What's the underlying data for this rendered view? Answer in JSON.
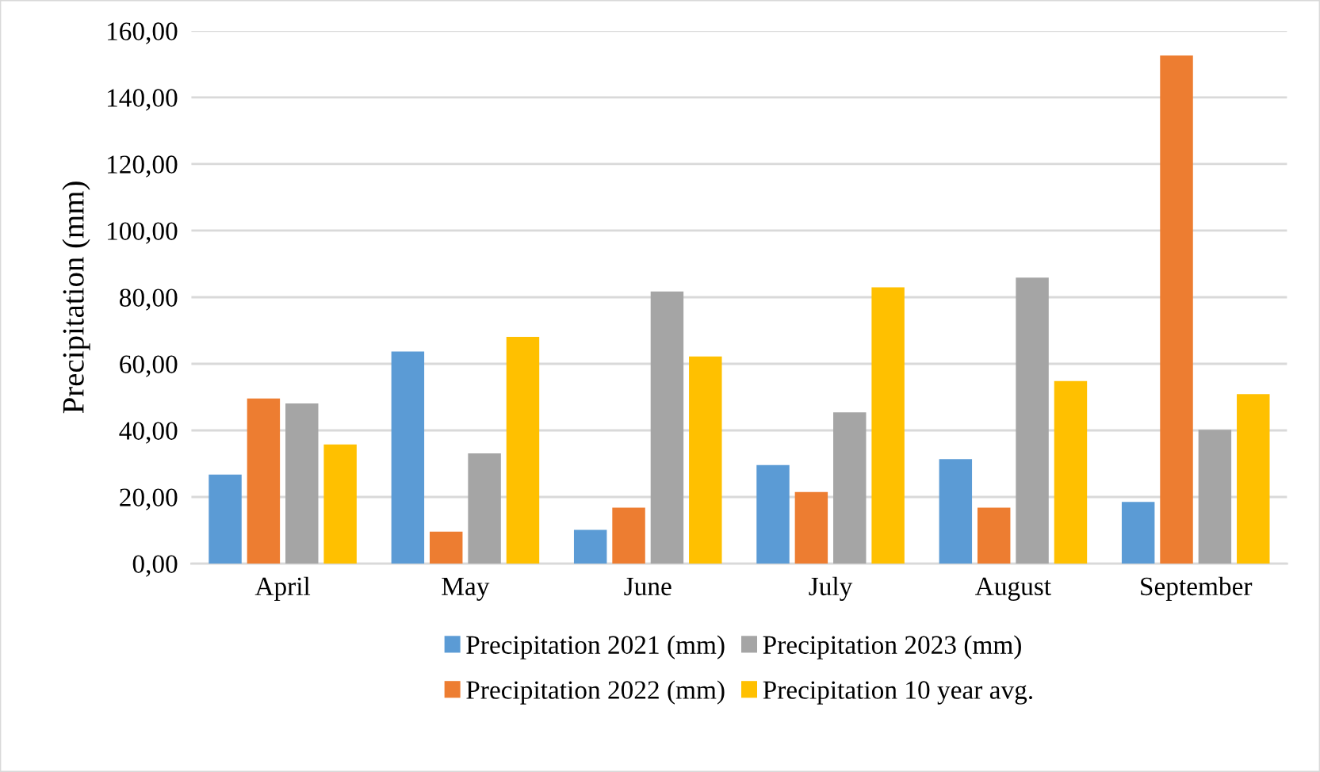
{
  "chart_data": {
    "type": "bar",
    "ylabel": "Precipitation (mm)",
    "categories": [
      "April",
      "May",
      "June",
      "July",
      "August",
      "September"
    ],
    "series": [
      {
        "name": "Precipitation 2021 (mm)",
        "color": "#5b9bd5",
        "values": [
          26.7,
          63.7,
          10.1,
          29.6,
          31.4,
          18.5
        ]
      },
      {
        "name": "Precipitation 2022 (mm)",
        "color": "#ed7d31",
        "values": [
          49.6,
          9.6,
          16.8,
          21.5,
          16.8,
          152.6
        ]
      },
      {
        "name": "Precipitation 2023 (mm)",
        "color": "#a5a5a5",
        "values": [
          48.1,
          33.1,
          81.7,
          45.4,
          85.9,
          40.2
        ]
      },
      {
        "name": "Precipitation 10 year avg.",
        "color": "#ffc000",
        "values": [
          35.8,
          68.1,
          62.2,
          83.0,
          54.8,
          50.9
        ]
      }
    ],
    "ylim": [
      0,
      160
    ],
    "yticks": [
      {
        "value": 0,
        "label": "0,00"
      },
      {
        "value": 20,
        "label": "20,00"
      },
      {
        "value": 40,
        "label": "40,00"
      },
      {
        "value": 60,
        "label": "60,00"
      },
      {
        "value": 80,
        "label": "80,00"
      },
      {
        "value": 100,
        "label": "100,00"
      },
      {
        "value": 120,
        "label": "120,00"
      },
      {
        "value": 140,
        "label": "140,00"
      },
      {
        "value": 160,
        "label": "160,00"
      }
    ],
    "grid": "y",
    "legend": "bottom"
  }
}
